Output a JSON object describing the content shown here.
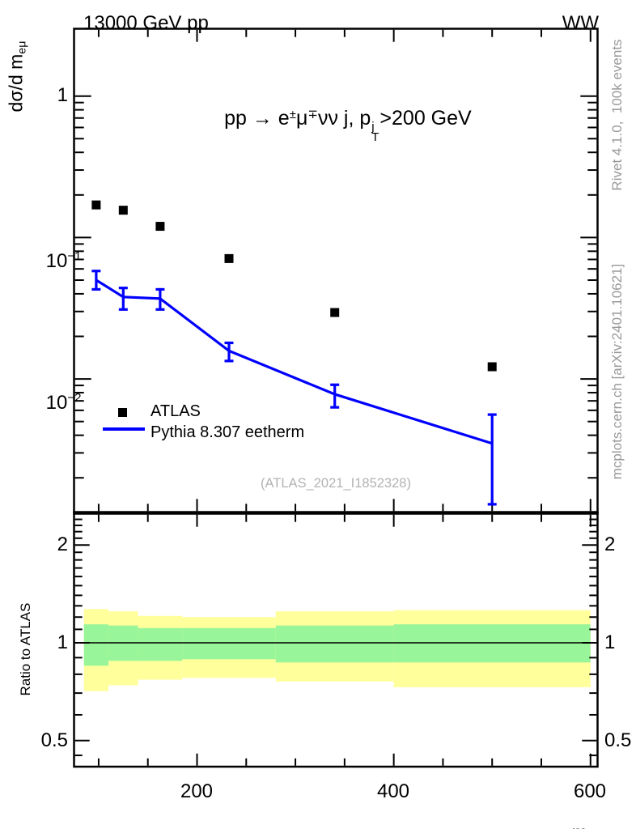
{
  "header": {
    "left": "13000 GeV pp",
    "right": "WW"
  },
  "main_title": {
    "p1": "pp ",
    "arrow": "→",
    "p2": " e",
    "e_sup": "±",
    "mu": "μ",
    "mu_sup": "∓",
    "p3": "νν j, p",
    "pt_sup": "j",
    "pt_sub": "T",
    "p4": ">200 GeV"
  },
  "axes": {
    "y_label": {
      "text": "dσ/d m",
      "sub": "eμ"
    },
    "x_label": {
      "text": "m",
      "sub": "eμ"
    },
    "ratio_label": "Ratio to ATLAS",
    "main_yticks": {
      "one": "1",
      "ten": "10",
      "m1": "−1",
      "m2": "−2"
    },
    "ratio_yticks": {
      "two": "2",
      "one": "1",
      "half": "0.5"
    },
    "x_ticks": [
      "200",
      "400",
      "600"
    ]
  },
  "legend": {
    "items": [
      {
        "label": "ATLAS",
        "marker": "filled-square",
        "color": "#000000"
      },
      {
        "label": "Pythia 8.307 eetherm",
        "marker": "line",
        "color": "#0000ff"
      }
    ]
  },
  "watermark": "(ATLAS_2021_I1852328)",
  "sidebar": {
    "top": "Rivet 4.1.0,  100k events",
    "bottom": "mcplots.cern.ch [arXiv:2401.10621]"
  },
  "chart_data": {
    "type": "line",
    "title": "pp -> e mu nunu j, pT(j)>200 GeV",
    "xlabel": "m_emu",
    "ylabel": "dsigma/d m_emu",
    "x_edges": [
      85,
      110,
      140,
      185,
      280,
      400,
      600
    ],
    "x_centers": [
      97.5,
      125,
      162.5,
      232.5,
      340,
      500
    ],
    "xlim": [
      75,
      607
    ],
    "x_ticks_major": [
      200,
      400,
      600
    ],
    "x_ticks_minor": [
      100,
      150,
      250,
      300,
      350,
      450,
      500,
      550
    ],
    "main": {
      "ylog": true,
      "ylim": [
        0.0011,
        3.0
      ],
      "yticks_major": [
        1,
        0.1,
        0.01
      ],
      "yticks_minor": [
        0.9,
        0.8,
        0.7,
        0.6,
        0.5,
        0.4,
        0.3,
        0.2,
        0.09,
        0.08,
        0.07,
        0.06,
        0.05,
        0.04,
        0.03,
        0.02,
        0.009,
        0.008,
        0.007,
        0.006,
        0.005,
        0.004,
        0.003,
        0.002
      ],
      "series": [
        {
          "name": "ATLAS",
          "type": "scatter",
          "marker": "square",
          "color": "#000000",
          "values": [
            0.17,
            0.156,
            0.12,
            0.071,
            0.0295,
            0.0122
          ]
        },
        {
          "name": "Pythia 8.307 eetherm",
          "type": "line",
          "color": "#0000ff",
          "values": [
            0.05,
            0.038,
            0.037,
            0.0158,
            0.0078,
            0.0035
          ],
          "err_lo": [
            0.043,
            0.031,
            0.031,
            0.0134,
            0.0063,
            0.0013
          ],
          "err_hi": [
            0.058,
            0.044,
            0.043,
            0.018,
            0.0091,
            0.0056
          ]
        }
      ]
    },
    "ratio": {
      "ylog": true,
      "ylim": [
        0.415,
        2.5
      ],
      "yticks_major": [
        0.5,
        1,
        2
      ],
      "yticks_minor": [
        0.45,
        0.6,
        0.7,
        0.8,
        0.9,
        1.1,
        1.2,
        1.3,
        1.4,
        1.5,
        1.6,
        1.7,
        1.8,
        1.9,
        2.1,
        2.2,
        2.3,
        2.4
      ],
      "reference_line": 1,
      "yellow_band": [
        [
          0.71,
          1.27
        ],
        [
          0.74,
          1.25
        ],
        [
          0.77,
          1.21
        ],
        [
          0.78,
          1.2
        ],
        [
          0.76,
          1.25
        ],
        [
          0.73,
          1.26
        ]
      ],
      "green_band": [
        [
          0.85,
          1.14
        ],
        [
          0.88,
          1.13
        ],
        [
          0.88,
          1.11
        ],
        [
          0.89,
          1.11
        ],
        [
          0.87,
          1.13
        ],
        [
          0.87,
          1.14
        ]
      ],
      "colors": {
        "yellow": "#ffff9b",
        "green": "#99f599"
      },
      "legend_position": "none"
    }
  }
}
